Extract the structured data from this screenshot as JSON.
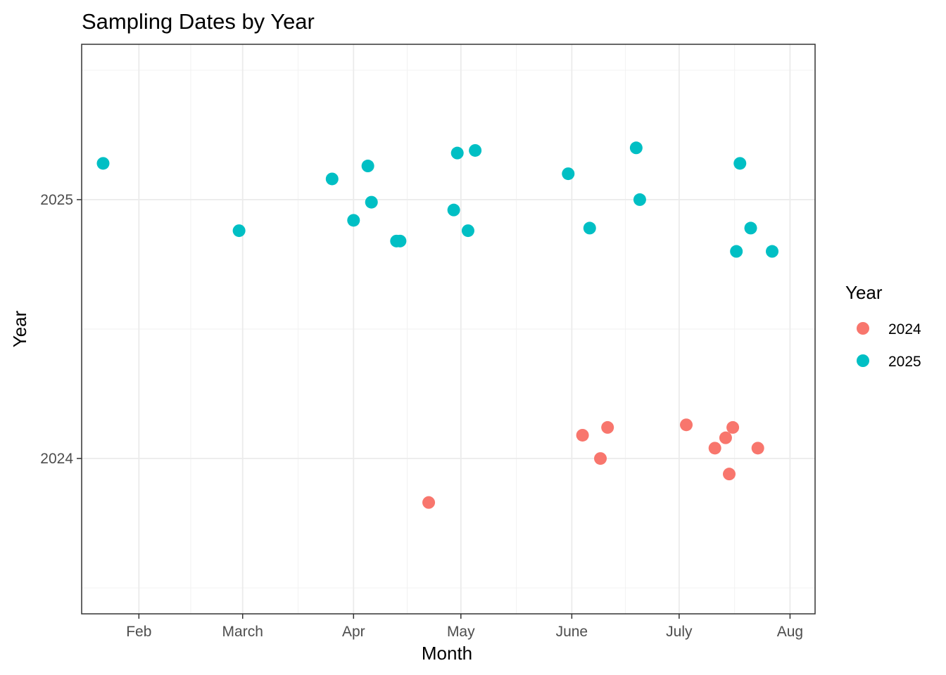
{
  "chart_data": {
    "type": "scatter",
    "title": "Sampling Dates by Year",
    "xlabel": "Month",
    "ylabel": "Year",
    "x_tick_labels": [
      "Feb",
      "March",
      "Apr",
      "May",
      "June",
      "July",
      "Aug"
    ],
    "x_tick_dates": [
      "2000-02-01",
      "2000-03-01",
      "2000-04-01",
      "2000-05-01",
      "2000-06-01",
      "2000-07-01",
      "2000-08-01"
    ],
    "x_range": [
      "2000-01-16",
      "2000-08-08"
    ],
    "y_tick_labels": [
      "2024",
      "2025"
    ],
    "y_ticks": [
      2024,
      2025
    ],
    "y_range": [
      2023.4,
      2025.6
    ],
    "grid": true,
    "legend": {
      "title": "Year",
      "position": "right"
    },
    "series": [
      {
        "name": "2024",
        "color": "#F8766D",
        "points": [
          {
            "x": "2000-04-22",
            "y": 2023.83
          },
          {
            "x": "2000-06-04",
            "y": 2024.09
          },
          {
            "x": "2000-06-09",
            "y": 2024.0
          },
          {
            "x": "2000-06-11",
            "y": 2024.12
          },
          {
            "x": "2000-07-03",
            "y": 2024.13
          },
          {
            "x": "2000-07-11",
            "y": 2024.04
          },
          {
            "x": "2000-07-14",
            "y": 2024.08
          },
          {
            "x": "2000-07-15",
            "y": 2023.94
          },
          {
            "x": "2000-07-16",
            "y": 2024.12
          },
          {
            "x": "2000-07-23",
            "y": 2024.04
          }
        ]
      },
      {
        "name": "2025",
        "color": "#00BFC4",
        "points": [
          {
            "x": "2000-01-22",
            "y": 2025.14
          },
          {
            "x": "2000-02-29",
            "y": 2024.88
          },
          {
            "x": "2000-03-26",
            "y": 2025.08
          },
          {
            "x": "2000-04-01",
            "y": 2024.92
          },
          {
            "x": "2000-04-05",
            "y": 2025.13
          },
          {
            "x": "2000-04-06",
            "y": 2024.99
          },
          {
            "x": "2000-04-13",
            "y": 2024.84
          },
          {
            "x": "2000-04-14",
            "y": 2024.84
          },
          {
            "x": "2000-04-29",
            "y": 2024.96
          },
          {
            "x": "2000-04-30",
            "y": 2025.18
          },
          {
            "x": "2000-05-03",
            "y": 2024.88
          },
          {
            "x": "2000-05-05",
            "y": 2025.19
          },
          {
            "x": "2000-05-31",
            "y": 2025.1
          },
          {
            "x": "2000-06-06",
            "y": 2024.89
          },
          {
            "x": "2000-06-19",
            "y": 2025.2
          },
          {
            "x": "2000-06-20",
            "y": 2025.0
          },
          {
            "x": "2000-07-17",
            "y": 2024.8
          },
          {
            "x": "2000-07-18",
            "y": 2025.14
          },
          {
            "x": "2000-07-21",
            "y": 2024.89
          },
          {
            "x": "2000-07-27",
            "y": 2024.8
          }
        ]
      }
    ]
  }
}
